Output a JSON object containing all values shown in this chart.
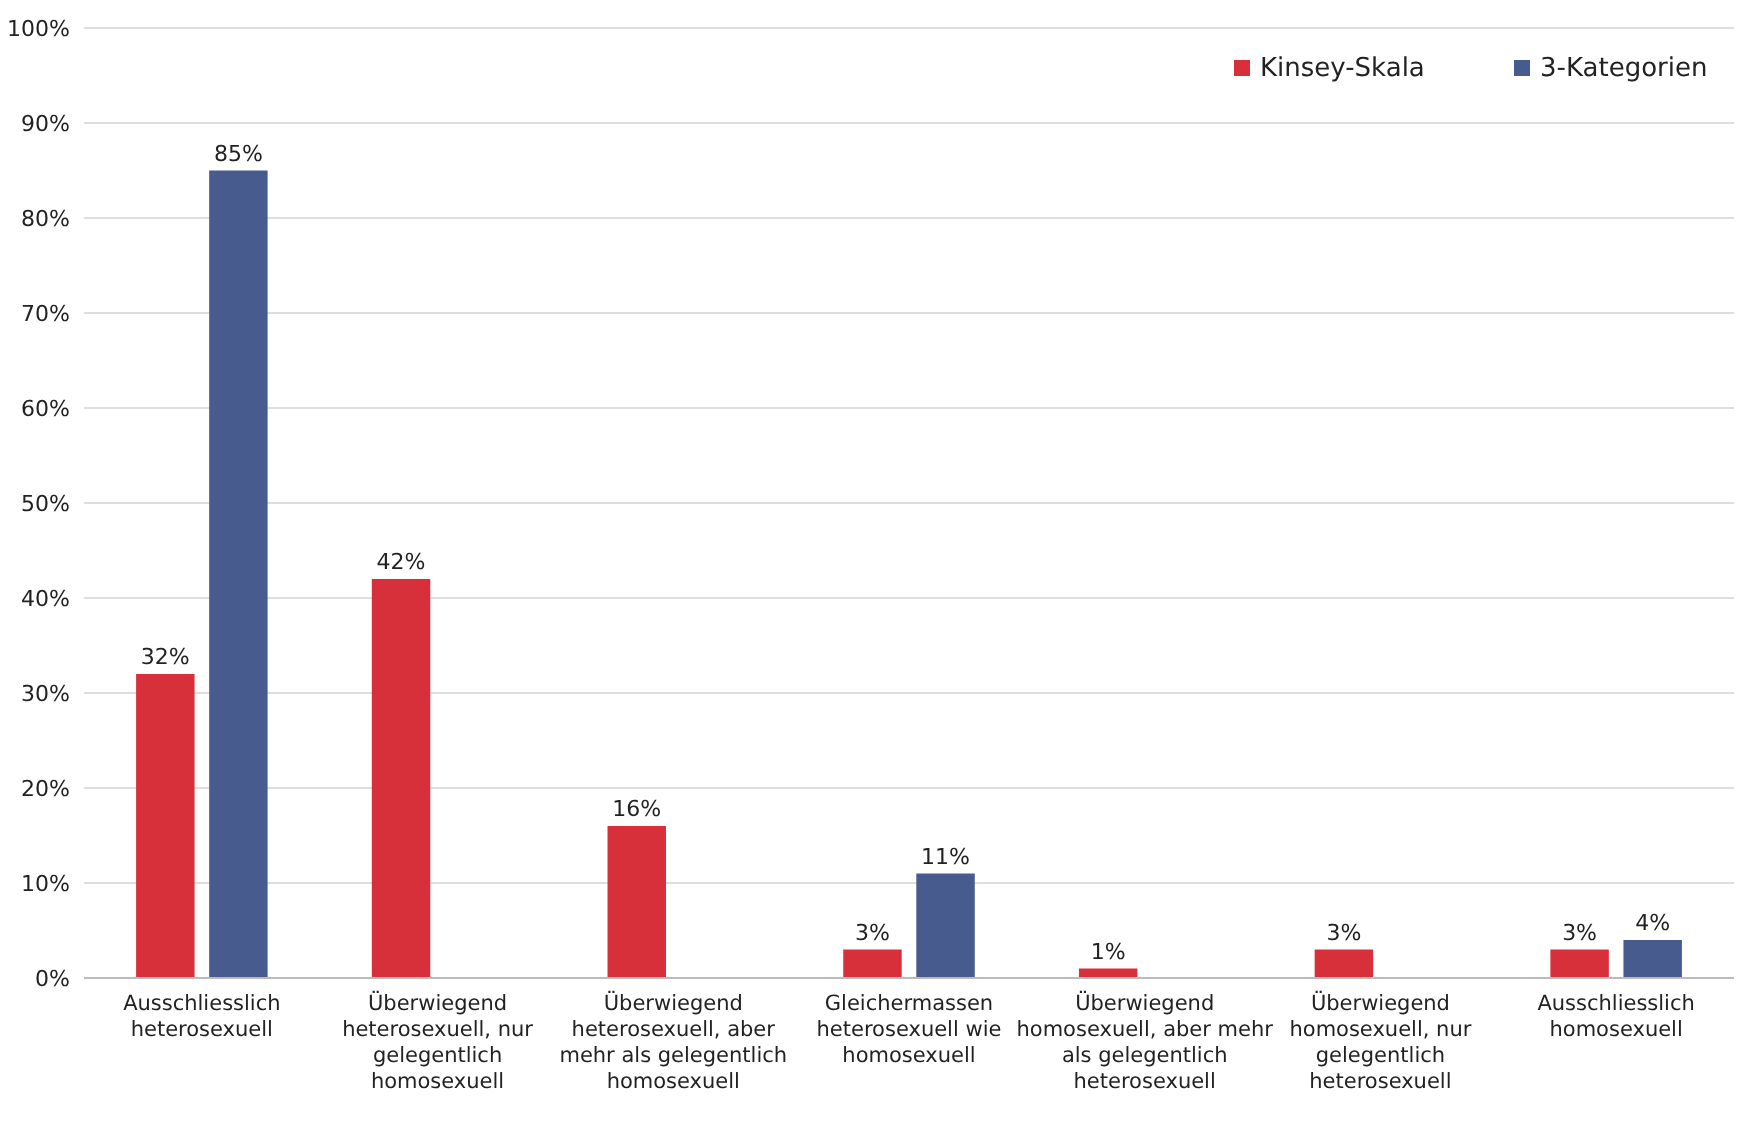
{
  "chart_data": {
    "type": "bar",
    "categories": [
      "Ausschliesslich heterosexuell",
      "Überwiegend heterosexuell, nur gelegentlich homosexuell",
      "Überwiegend heterosexuell, aber mehr als gelegentlich homosexuell",
      "Gleichermassen heterosexuell wie homosexuell",
      "Überwiegend homosexuell, aber mehr als gelegentlich heterosexuell",
      "Überwiegend homosexuell, nur gelegentlich heterosexuell",
      "Ausschliesslich homosexuell"
    ],
    "series": [
      {
        "name": "Kinsey-Skala",
        "color": "#d8303a",
        "values": [
          32,
          42,
          16,
          3,
          1,
          3,
          3
        ],
        "value_labels": [
          "32%",
          "42%",
          "16%",
          "3%",
          "1%",
          "3%",
          "3%"
        ]
      },
      {
        "name": "3-Kategorien",
        "color": "#485b8f",
        "values": [
          85,
          null,
          null,
          11,
          null,
          null,
          4
        ],
        "value_labels": [
          "85%",
          null,
          null,
          "11%",
          null,
          null,
          "4%"
        ]
      }
    ],
    "ylim": [
      0,
      100
    ],
    "yticks": [
      {
        "value": 0,
        "label": "0%"
      },
      {
        "value": 10,
        "label": "10%"
      },
      {
        "value": 20,
        "label": "20%"
      },
      {
        "value": 30,
        "label": "30%"
      },
      {
        "value": 40,
        "label": "40%"
      },
      {
        "value": 50,
        "label": "50%"
      },
      {
        "value": 60,
        "label": "60%"
      },
      {
        "value": 70,
        "label": "70%"
      },
      {
        "value": 80,
        "label": "80%"
      },
      {
        "value": 90,
        "label": "90%"
      },
      {
        "value": 100,
        "label": "100%"
      }
    ],
    "grid": "y",
    "legend": "top right"
  }
}
